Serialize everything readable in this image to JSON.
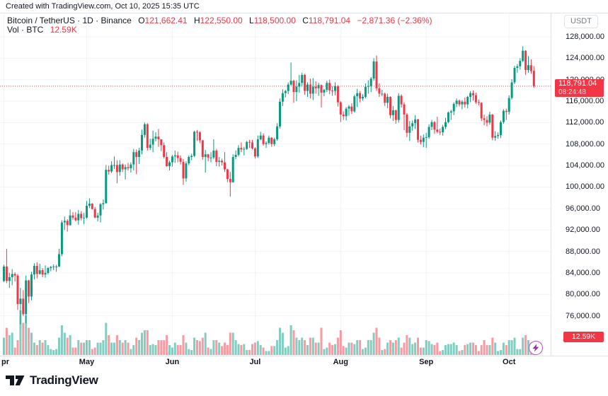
{
  "header": {
    "attribution": "Created with TradingView.com, Oct 10, 2025 15:35 UTC"
  },
  "legend": {
    "title": "Bitcoin / TetherUS · 1D · Binance",
    "o_label": "O",
    "o": "121,662.41",
    "h_label": "H",
    "h": "122,550.00",
    "l_label": "L",
    "l": "118,500.00",
    "c_label": "C",
    "c": "118,791.04",
    "change": "−2,871.36 (−2.36%)",
    "vol_label": "Vol · BTC",
    "vol_value": "12.59K"
  },
  "price_axis": {
    "currency_button": "USDT",
    "last_price": "118,791.04",
    "countdown": "08:24:48",
    "volume_label": "12.59K",
    "ticks": [
      {
        "value_k": 128,
        "label": "128,000.00"
      },
      {
        "value_k": 124,
        "label": "124,000.00"
      },
      {
        "value_k": 120,
        "label": "120,000.00"
      },
      {
        "value_k": 116,
        "label": "116,000.00"
      },
      {
        "value_k": 112,
        "label": "112,000.00"
      },
      {
        "value_k": 108,
        "label": "108,000.00"
      },
      {
        "value_k": 104,
        "label": "104,000.00"
      },
      {
        "value_k": 100,
        "label": "100,000.00"
      },
      {
        "value_k": 96,
        "label": "96,000.00"
      },
      {
        "value_k": 92,
        "label": "92,000.00"
      },
      {
        "value_k": 88,
        "label": "88,000.00"
      },
      {
        "value_k": 84,
        "label": "84,000.00"
      },
      {
        "value_k": 80,
        "label": "80,000.00"
      },
      {
        "value_k": 76,
        "label": "76,000.00"
      }
    ]
  },
  "time_axis": {
    "months": [
      {
        "label": "pr",
        "index": 0
      },
      {
        "label": "May",
        "index": 30
      },
      {
        "label": "Jun",
        "index": 61
      },
      {
        "label": "Jul",
        "index": 91
      },
      {
        "label": "Aug",
        "index": 122
      },
      {
        "label": "Sep",
        "index": 153
      },
      {
        "label": "Oct",
        "index": 183
      }
    ]
  },
  "footer": {
    "brand": "TradingView"
  },
  "colors": {
    "up": "#089981",
    "down": "#f23645",
    "vol_up": "rgba(8,153,129,0.5)",
    "vol_down": "rgba(242,54,69,0.5)",
    "grid": "#f0f3fa",
    "border": "#e0e3eb",
    "text": "#131722",
    "muted": "#787b86",
    "label_bg": "#f23645",
    "lightning": "#9c27b0",
    "lightning_ring": "#bb4ed0"
  },
  "chart_data": {
    "type": "candlestick",
    "symbol": "Bitcoin / TetherUS",
    "exchange": "Binance",
    "interval": "1D",
    "date_range": "Apr 1 2025 – Oct 10 2025",
    "units": "candles are [open, high, low, close, volume]; prices in thousands of USDT, volume in K BTC",
    "last_close": 118791.04,
    "last_ohlc": {
      "o": 121662.41,
      "h": 122550.0,
      "l": 118500.0,
      "c": 118791.04,
      "vol_kbtc": 12.59
    },
    "price_line_k": 118.791,
    "y_axis": {
      "min_k": 72,
      "max_k": 129.5,
      "tick_step_k": 4,
      "grid": true
    },
    "candles": [
      [
        82.5,
        85.5,
        82.3,
        85.2,
        35
      ],
      [
        85.2,
        88.5,
        82.1,
        82.5,
        55
      ],
      [
        82.5,
        84.0,
        81.2,
        83.2,
        40
      ],
      [
        83.2,
        84.7,
        81.7,
        83.8,
        45
      ],
      [
        83.8,
        84.1,
        82.4,
        83.5,
        15
      ],
      [
        83.5,
        83.8,
        77.1,
        78.2,
        30
      ],
      [
        78.2,
        81.2,
        74.4,
        79.2,
        90
      ],
      [
        79.2,
        80.8,
        76.0,
        76.3,
        65
      ],
      [
        76.3,
        83.5,
        74.6,
        82.6,
        80
      ],
      [
        82.6,
        82.7,
        78.4,
        79.6,
        55
      ],
      [
        79.6,
        84.2,
        78.9,
        83.7,
        45
      ],
      [
        83.7,
        85.8,
        82.8,
        85.3,
        25
      ],
      [
        85.3,
        86.0,
        83.0,
        83.8,
        20
      ],
      [
        83.8,
        85.7,
        83.7,
        84.5,
        30
      ],
      [
        84.5,
        84.9,
        83.2,
        83.7,
        25
      ],
      [
        83.7,
        85.4,
        83.1,
        84.0,
        30
      ],
      [
        84.0,
        85.1,
        83.7,
        84.9,
        20
      ],
      [
        84.9,
        85.3,
        84.3,
        85.1,
        12
      ],
      [
        85.1,
        85.6,
        84.5,
        85.2,
        10
      ],
      [
        85.2,
        85.5,
        84.2,
        85.2,
        12
      ],
      [
        85.2,
        88.5,
        85.1,
        87.5,
        35
      ],
      [
        87.5,
        93.8,
        87.1,
        93.4,
        60
      ],
      [
        93.4,
        94.5,
        92.0,
        93.7,
        45
      ],
      [
        93.7,
        94.0,
        91.7,
        92.9,
        35
      ],
      [
        92.9,
        95.8,
        92.8,
        94.7,
        40
      ],
      [
        94.7,
        95.3,
        93.9,
        94.3,
        15
      ],
      [
        94.3,
        95.3,
        93.6,
        93.8,
        15
      ],
      [
        93.8,
        95.7,
        93.0,
        95.0,
        30
      ],
      [
        95.0,
        95.5,
        93.8,
        94.2,
        25
      ],
      [
        94.2,
        95.2,
        93.1,
        94.3,
        25
      ],
      [
        94.3,
        97.4,
        94.1,
        96.5,
        30
      ],
      [
        96.5,
        97.9,
        96.1,
        96.9,
        30
      ],
      [
        96.9,
        97.0,
        95.8,
        95.9,
        12
      ],
      [
        95.9,
        96.3,
        94.2,
        94.3,
        15
      ],
      [
        94.3,
        95.2,
        93.6,
        94.7,
        25
      ],
      [
        94.7,
        97.0,
        93.4,
        96.8,
        25
      ],
      [
        96.8,
        97.7,
        95.8,
        97.0,
        30
      ],
      [
        97.0,
        104.1,
        96.9,
        103.2,
        65
      ],
      [
        103.2,
        104.0,
        102.3,
        102.9,
        40
      ],
      [
        102.9,
        104.8,
        102.6,
        104.1,
        25
      ],
      [
        104.1,
        105.7,
        103.4,
        104.1,
        25
      ],
      [
        104.1,
        105.0,
        100.7,
        102.8,
        40
      ],
      [
        102.8,
        105.0,
        102.1,
        104.2,
        30
      ],
      [
        104.2,
        104.4,
        102.8,
        103.3,
        25
      ],
      [
        103.3,
        104.2,
        101.4,
        103.7,
        30
      ],
      [
        103.7,
        104.5,
        103.1,
        103.5,
        25
      ],
      [
        103.5,
        104.6,
        102.7,
        104.2,
        12
      ],
      [
        104.2,
        107.1,
        103.1,
        106.5,
        20
      ],
      [
        106.5,
        107.0,
        102.4,
        105.6,
        35
      ],
      [
        105.6,
        107.3,
        104.3,
        106.8,
        30
      ],
      [
        106.8,
        110.7,
        106.1,
        109.7,
        45
      ],
      [
        109.7,
        112.0,
        109.2,
        111.7,
        50
      ],
      [
        111.7,
        111.9,
        106.8,
        107.3,
        50
      ],
      [
        107.3,
        109.0,
        106.9,
        107.9,
        20
      ],
      [
        107.9,
        110.5,
        106.5,
        109.0,
        22
      ],
      [
        109.0,
        110.2,
        108.5,
        109.4,
        20
      ],
      [
        109.4,
        110.8,
        107.5,
        108.9,
        30
      ],
      [
        108.9,
        108.9,
        106.7,
        107.8,
        30
      ],
      [
        107.8,
        108.3,
        105.3,
        105.6,
        30
      ],
      [
        105.6,
        106.5,
        103.8,
        103.9,
        40
      ],
      [
        103.9,
        104.9,
        103.1,
        104.6,
        20
      ],
      [
        104.6,
        106.0,
        103.8,
        105.7,
        15
      ],
      [
        105.7,
        106.8,
        104.5,
        105.9,
        25
      ],
      [
        105.9,
        106.6,
        104.6,
        105.4,
        20
      ],
      [
        105.4,
        105.9,
        104.2,
        104.7,
        20
      ],
      [
        104.7,
        105.2,
        100.4,
        101.6,
        40
      ],
      [
        101.6,
        104.8,
        101.0,
        104.4,
        25
      ],
      [
        104.4,
        105.9,
        104.1,
        105.6,
        12
      ],
      [
        105.6,
        106.2,
        105.0,
        105.8,
        10
      ],
      [
        105.8,
        110.5,
        105.6,
        110.3,
        35
      ],
      [
        110.3,
        110.6,
        108.6,
        110.2,
        30
      ],
      [
        110.2,
        110.4,
        108.2,
        108.7,
        28
      ],
      [
        108.7,
        108.8,
        105.1,
        105.6,
        35
      ],
      [
        105.6,
        106.9,
        102.7,
        106.1,
        45
      ],
      [
        106.1,
        106.2,
        104.8,
        105.5,
        15
      ],
      [
        105.5,
        106.5,
        104.6,
        105.5,
        12
      ],
      [
        105.5,
        108.9,
        105.2,
        106.8,
        30
      ],
      [
        106.8,
        107.1,
        103.9,
        104.7,
        30
      ],
      [
        104.7,
        105.6,
        103.8,
        104.9,
        25
      ],
      [
        104.9,
        105.3,
        104.0,
        104.6,
        18
      ],
      [
        104.6,
        106.5,
        102.8,
        103.3,
        25
      ],
      [
        103.3,
        103.4,
        100.9,
        101.5,
        20
      ],
      [
        101.5,
        102.8,
        98.2,
        100.9,
        45
      ],
      [
        100.9,
        106.1,
        100.8,
        105.6,
        45
      ],
      [
        105.6,
        106.8,
        105.2,
        106.0,
        30
      ],
      [
        106.0,
        107.8,
        105.7,
        107.3,
        22
      ],
      [
        107.3,
        108.3,
        106.5,
        107.0,
        20
      ],
      [
        107.0,
        107.5,
        105.9,
        107.1,
        22
      ],
      [
        107.1,
        108.6,
        106.9,
        108.4,
        10
      ],
      [
        108.4,
        108.8,
        107.3,
        108.3,
        10
      ],
      [
        108.3,
        108.8,
        107.0,
        107.2,
        22
      ],
      [
        107.2,
        107.4,
        105.3,
        105.7,
        25
      ],
      [
        105.7,
        109.6,
        105.4,
        108.9,
        28
      ],
      [
        108.9,
        110.3,
        108.7,
        109.6,
        20
      ],
      [
        109.6,
        110.0,
        107.7,
        108.0,
        15
      ],
      [
        108.0,
        108.5,
        107.3,
        108.2,
        8
      ],
      [
        108.2,
        109.6,
        107.9,
        109.2,
        8
      ],
      [
        109.2,
        109.3,
        107.5,
        108.0,
        18
      ],
      [
        108.0,
        109.2,
        107.6,
        108.9,
        18
      ],
      [
        108.9,
        111.9,
        108.6,
        111.3,
        30
      ],
      [
        111.3,
        116.5,
        110.9,
        115.9,
        55
      ],
      [
        115.9,
        118.2,
        115.1,
        117.5,
        45
      ],
      [
        117.5,
        118.1,
        116.7,
        117.9,
        15
      ],
      [
        117.9,
        119.5,
        117.3,
        119.1,
        18
      ],
      [
        119.1,
        123.2,
        118.9,
        119.8,
        60
      ],
      [
        119.8,
        120.0,
        115.7,
        117.7,
        50
      ],
      [
        117.7,
        119.9,
        116.0,
        118.7,
        35
      ],
      [
        118.7,
        120.9,
        117.6,
        119.4,
        30
      ],
      [
        119.4,
        121.3,
        118.7,
        120.9,
        35
      ],
      [
        120.9,
        121.1,
        117.2,
        117.9,
        30
      ],
      [
        117.9,
        119.5,
        116.8,
        119.1,
        20
      ],
      [
        119.1,
        120.2,
        116.5,
        117.4,
        35
      ],
      [
        117.4,
        120.3,
        116.2,
        118.7,
        35
      ],
      [
        118.7,
        119.7,
        117.4,
        118.4,
        25
      ],
      [
        118.4,
        119.4,
        117.0,
        119.0,
        25
      ],
      [
        119.0,
        119.1,
        114.8,
        117.6,
        55
      ],
      [
        117.6,
        118.3,
        116.9,
        118.1,
        12
      ],
      [
        118.1,
        119.8,
        117.7,
        119.4,
        15
      ],
      [
        119.4,
        120.0,
        117.3,
        118.0,
        25
      ],
      [
        118.0,
        118.8,
        117.0,
        117.9,
        20
      ],
      [
        117.9,
        119.5,
        117.1,
        118.8,
        22
      ],
      [
        118.8,
        119.0,
        115.0,
        115.8,
        35
      ],
      [
        115.8,
        116.0,
        112.1,
        113.5,
        50
      ],
      [
        113.5,
        114.1,
        112.5,
        113.2,
        18
      ],
      [
        113.2,
        114.9,
        112.4,
        114.6,
        15
      ],
      [
        114.6,
        115.3,
        113.3,
        115.0,
        25
      ],
      [
        115.0,
        115.6,
        113.6,
        114.1,
        25
      ],
      [
        114.1,
        117.2,
        113.9,
        116.9,
        22
      ],
      [
        116.9,
        118.3,
        114.9,
        117.5,
        30
      ],
      [
        117.5,
        117.9,
        115.8,
        116.5,
        30
      ],
      [
        116.5,
        117.3,
        116.1,
        116.8,
        12
      ],
      [
        116.8,
        119.3,
        116.5,
        118.7,
        15
      ],
      [
        118.7,
        119.9,
        117.4,
        118.8,
        30
      ],
      [
        118.8,
        120.5,
        117.7,
        120.2,
        30
      ],
      [
        120.2,
        124.0,
        119.8,
        123.4,
        45
      ],
      [
        123.4,
        124.5,
        117.9,
        118.4,
        55
      ],
      [
        118.4,
        119.3,
        116.8,
        117.4,
        35
      ],
      [
        117.4,
        118.1,
        116.9,
        117.4,
        10
      ],
      [
        117.4,
        117.6,
        115.1,
        115.7,
        12
      ],
      [
        115.7,
        117.4,
        114.7,
        116.8,
        25
      ],
      [
        116.8,
        116.9,
        112.8,
        113.4,
        30
      ],
      [
        113.4,
        115.1,
        112.3,
        114.3,
        25
      ],
      [
        114.3,
        114.4,
        111.8,
        112.5,
        30
      ],
      [
        112.5,
        117.5,
        112.0,
        117.0,
        35
      ],
      [
        117.0,
        117.3,
        114.8,
        115.4,
        15
      ],
      [
        115.4,
        115.8,
        110.6,
        113.5,
        25
      ],
      [
        113.5,
        113.8,
        109.3,
        110.1,
        40
      ],
      [
        110.1,
        112.3,
        108.6,
        111.3,
        35
      ],
      [
        111.3,
        112.4,
        110.5,
        111.9,
        22
      ],
      [
        111.9,
        113.4,
        110.8,
        112.6,
        25
      ],
      [
        112.6,
        112.7,
        108.3,
        108.8,
        35
      ],
      [
        108.8,
        109.6,
        107.9,
        108.4,
        15
      ],
      [
        108.4,
        109.8,
        107.4,
        109.2,
        15
      ],
      [
        109.2,
        110.1,
        107.3,
        109.3,
        30
      ],
      [
        109.3,
        111.7,
        109.0,
        111.2,
        28
      ],
      [
        111.2,
        112.5,
        110.6,
        112.1,
        22
      ],
      [
        112.1,
        112.3,
        109.9,
        110.7,
        20
      ],
      [
        110.7,
        113.1,
        110.0,
        110.3,
        25
      ],
      [
        110.3,
        110.9,
        109.7,
        110.2,
        8
      ],
      [
        110.2,
        111.6,
        109.6,
        111.2,
        10
      ],
      [
        111.2,
        112.9,
        110.8,
        112.1,
        20
      ],
      [
        112.1,
        114.1,
        111.9,
        113.9,
        22
      ],
      [
        113.9,
        114.4,
        112.5,
        114.1,
        22
      ],
      [
        114.1,
        115.8,
        113.4,
        115.5,
        25
      ],
      [
        115.5,
        116.5,
        114.9,
        116.1,
        20
      ],
      [
        116.1,
        116.3,
        115.0,
        115.4,
        8
      ],
      [
        115.4,
        116.2,
        114.5,
        115.9,
        10
      ],
      [
        115.9,
        116.7,
        114.8,
        115.4,
        20
      ],
      [
        115.4,
        117.0,
        114.7,
        116.8,
        22
      ],
      [
        116.8,
        117.9,
        115.8,
        117.5,
        25
      ],
      [
        117.5,
        118.0,
        116.1,
        117.1,
        25
      ],
      [
        117.1,
        117.6,
        115.5,
        115.8,
        20
      ],
      [
        115.8,
        116.3,
        115.2,
        115.7,
        8
      ],
      [
        115.7,
        115.8,
        112.3,
        112.8,
        20
      ],
      [
        112.8,
        113.5,
        111.5,
        112.5,
        30
      ],
      [
        112.5,
        113.2,
        111.3,
        112.0,
        20
      ],
      [
        112.0,
        114.0,
        111.6,
        113.5,
        20
      ],
      [
        113.5,
        113.6,
        108.7,
        109.2,
        35
      ],
      [
        109.2,
        110.4,
        108.6,
        109.5,
        25
      ],
      [
        109.5,
        110.2,
        109.0,
        109.7,
        8
      ],
      [
        109.7,
        112.4,
        109.1,
        112.1,
        10
      ],
      [
        112.1,
        114.5,
        111.8,
        114.2,
        25
      ],
      [
        114.2,
        114.6,
        112.5,
        114.0,
        20
      ],
      [
        114.0,
        117.1,
        113.5,
        116.6,
        30
      ],
      [
        116.6,
        120.1,
        116.3,
        119.5,
        30
      ],
      [
        119.5,
        122.6,
        119.2,
        122.2,
        35
      ],
      [
        122.2,
        122.9,
        121.3,
        122.5,
        12
      ],
      [
        122.5,
        124.0,
        121.9,
        123.5,
        12
      ],
      [
        123.5,
        126.2,
        123.3,
        125.4,
        35
      ],
      [
        125.4,
        125.5,
        120.9,
        121.8,
        40
      ],
      [
        121.8,
        124.4,
        121.3,
        122.7,
        30
      ],
      [
        122.7,
        123.8,
        121.1,
        121.6,
        25
      ],
      [
        121.662,
        122.55,
        118.5,
        118.791,
        12.59
      ]
    ]
  }
}
